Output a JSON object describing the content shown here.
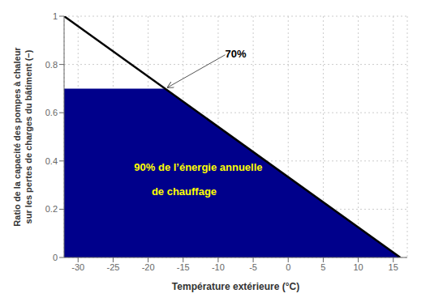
{
  "chart_data": {
    "type": "line",
    "xlabel": "Température extérieure (°C)",
    "ylabel": [
      "Ratio de la capacité des pompes à chaleur",
      "sur les pertes de charges du bâtiment (−)"
    ],
    "series": [
      {
        "type": "area",
        "color": "#00008B",
        "x": [
          -32,
          -17.6,
          16
        ],
        "values": [
          0.7,
          0.7,
          0.0
        ]
      },
      {
        "type": "line",
        "color": "black",
        "x": [
          -32,
          16
        ],
        "values": [
          1.0,
          0.0
        ]
      }
    ],
    "xlim": [
      -32,
      17
    ],
    "ylim": [
      0,
      1
    ],
    "xticks": [
      -30,
      -25,
      -20,
      -15,
      -10,
      -5,
      0,
      5,
      10,
      15
    ],
    "yticks": [
      0,
      0.2,
      0.4,
      0.6,
      0.8,
      1
    ],
    "grid": true,
    "annotations": [
      {
        "text": "70%",
        "x": -9,
        "y": 0.84,
        "arrow_x": -17.2,
        "arrow_y": 0.705,
        "color": "black"
      },
      {
        "text": "90%  de l’énergie annuelle",
        "x": -22,
        "y": 0.37,
        "color": "yellow"
      },
      {
        "text": "de chauffage",
        "x": -19.5,
        "y": 0.27,
        "color": "yellow"
      }
    ]
  }
}
